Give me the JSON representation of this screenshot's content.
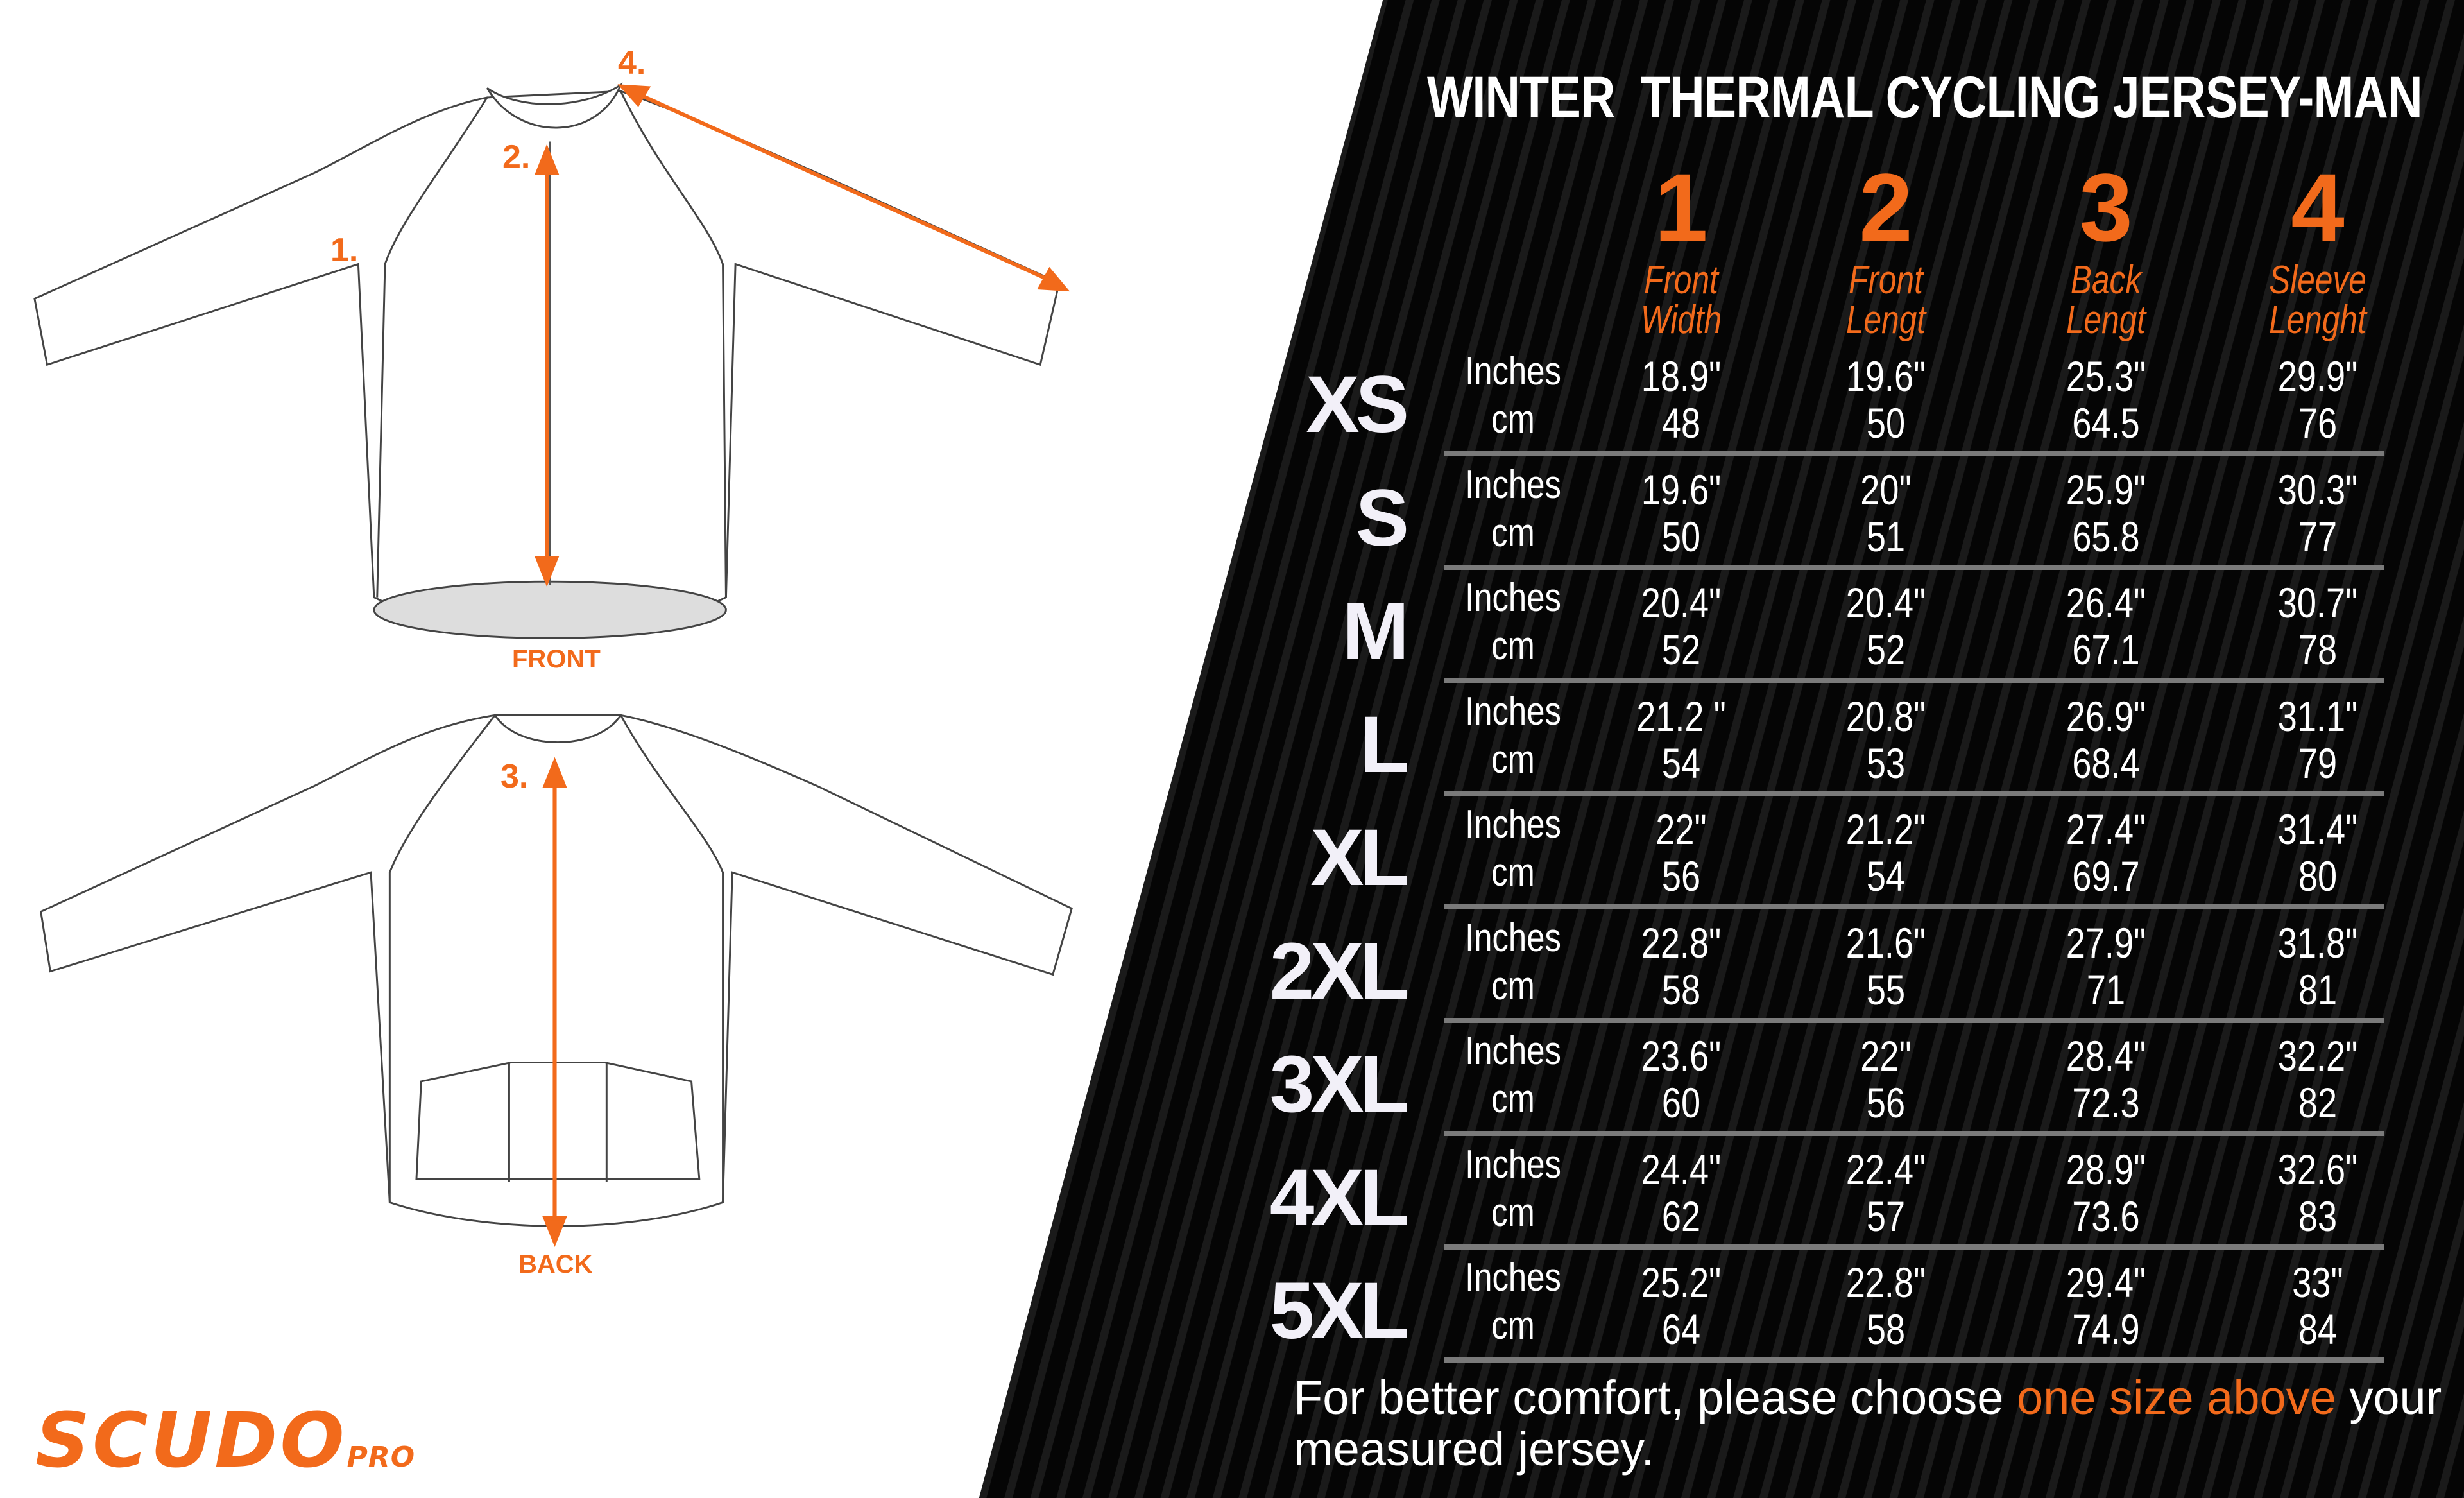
{
  "title": "WINTER  THERMAL CYCLING JERSEY-MAN",
  "colors": {
    "accent": "#f26a1b",
    "background": "#000000"
  },
  "columns": [
    {
      "number": "1",
      "label_line1": "Front",
      "label_line2": "Width"
    },
    {
      "number": "2",
      "label_line1": "Front",
      "label_line2": "Lengt"
    },
    {
      "number": "3",
      "label_line1": "Back",
      "label_line2": "Lengt"
    },
    {
      "number": "4",
      "label_line1": "Sleeve",
      "label_line2": "Lenght"
    }
  ],
  "units": {
    "inches": "Inches",
    "cm": "cm"
  },
  "rows": [
    {
      "size": "XS",
      "inches": [
        "18.9\"",
        "19.6\"",
        "25.3\"",
        "29.9\""
      ],
      "cm": [
        "48",
        "50",
        "64.5",
        "76"
      ]
    },
    {
      "size": "S",
      "inches": [
        "19.6\"",
        "20\"",
        "25.9\"",
        "30.3\""
      ],
      "cm": [
        "50",
        "51",
        "65.8",
        "77"
      ]
    },
    {
      "size": "M",
      "inches": [
        "20.4\"",
        "20.4\"",
        "26.4\"",
        "30.7\""
      ],
      "cm": [
        "52",
        "52",
        "67.1",
        "78"
      ]
    },
    {
      "size": "L",
      "inches": [
        "21.2 \"",
        "20.8\"",
        "26.9\"",
        "31.1\""
      ],
      "cm": [
        "54",
        "53",
        "68.4",
        "79"
      ]
    },
    {
      "size": "XL",
      "inches": [
        "22\"",
        "21.2\"",
        "27.4\"",
        "31.4\""
      ],
      "cm": [
        "56",
        "54",
        "69.7",
        "80"
      ]
    },
    {
      "size": "2XL",
      "inches": [
        "22.8\"",
        "21.6\"",
        "27.9\"",
        "31.8\""
      ],
      "cm": [
        "58",
        "55",
        "71",
        "81"
      ]
    },
    {
      "size": "3XL",
      "inches": [
        "23.6\"",
        "22\"",
        "28.4\"",
        "32.2\""
      ],
      "cm": [
        "60",
        "56",
        "72.3",
        "82"
      ]
    },
    {
      "size": "4XL",
      "inches": [
        "24.4\"",
        "22.4\"",
        "28.9\"",
        "32.6\""
      ],
      "cm": [
        "62",
        "57",
        "73.6",
        "83"
      ]
    },
    {
      "size": "5XL",
      "inches": [
        "25.2\"",
        "22.8\"",
        "29.4\"",
        "33\""
      ],
      "cm": [
        "64",
        "58",
        "74.9",
        "84"
      ]
    }
  ],
  "note": {
    "text_before": "For better comfort, please choose ",
    "highlight": "one size above",
    "text_after": " your measured jersey."
  },
  "diagram": {
    "front_label": "FRONT",
    "back_label": "BACK",
    "markers": [
      "1.",
      "2.",
      "3.",
      "4."
    ]
  },
  "logo": {
    "name": "SCUDO",
    "suffix": "PRO"
  }
}
